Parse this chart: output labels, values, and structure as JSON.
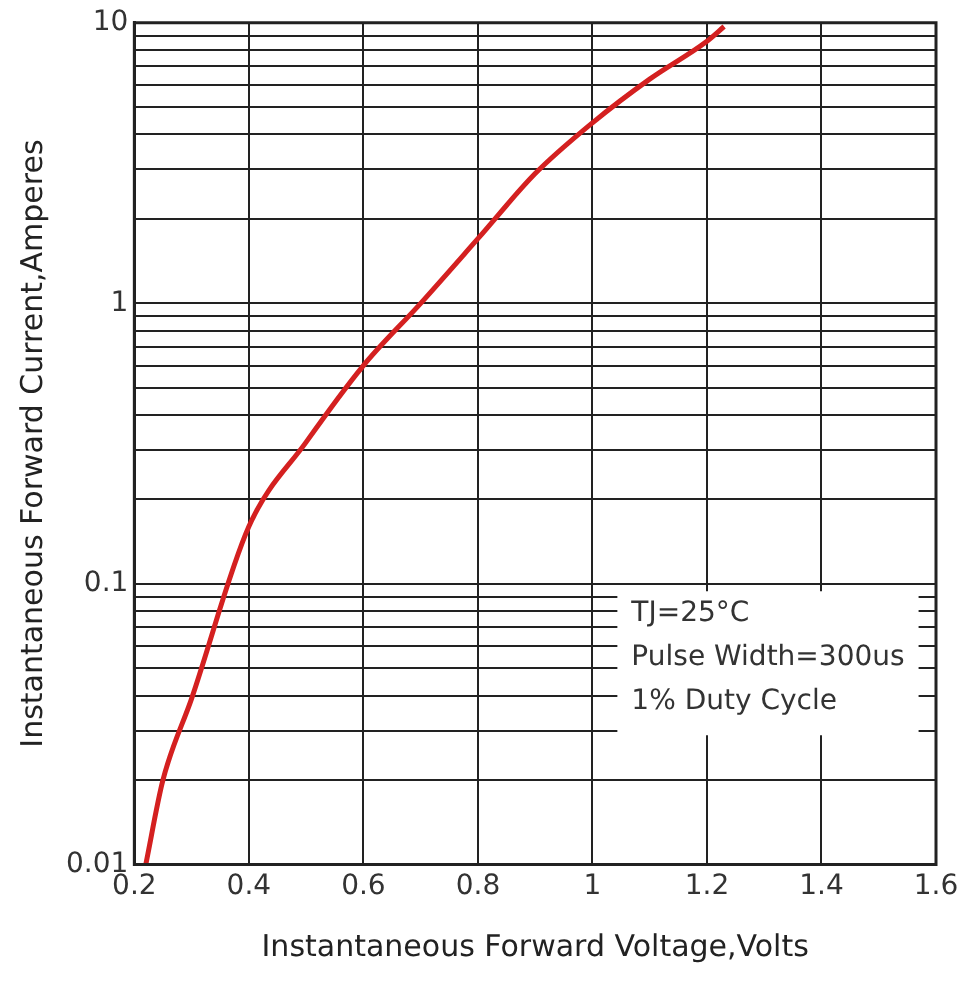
{
  "chart_data": {
    "type": "line",
    "xlabel": "Instantaneous Forward Voltage,Volts",
    "ylabel": "Instantaneous Forward Current,Amperes",
    "series": [
      {
        "color": "#d42020",
        "x": [
          0.22,
          0.25,
          0.3,
          0.4,
          0.5,
          0.6,
          0.7,
          0.8,
          0.9,
          1.0,
          1.1,
          1.2,
          1.23
        ],
        "values": [
          0.01,
          0.02,
          0.039,
          0.16,
          0.32,
          0.6,
          1.0,
          1.7,
          2.9,
          4.4,
          6.3,
          8.6,
          9.7
        ]
      }
    ],
    "xlim": [
      0.2,
      1.6
    ],
    "xticks": [
      0.2,
      0.4,
      0.6,
      0.8,
      1.0,
      1.2,
      1.4,
      1.6
    ],
    "ylim": [
      0.01,
      10
    ],
    "log": "y",
    "yticks": [
      0.01,
      {
        "value": 0.02,
        "label": null
      },
      {
        "value": 0.03,
        "label": null
      },
      {
        "value": 0.04,
        "label": null
      },
      {
        "value": 0.05,
        "label": null
      },
      {
        "value": 0.06,
        "label": null
      },
      {
        "value": 0.07,
        "label": null
      },
      {
        "value": 0.08,
        "label": null
      },
      {
        "value": 0.09,
        "label": null
      },
      0.1,
      {
        "value": 0.2,
        "label": null
      },
      {
        "value": 0.3,
        "label": null
      },
      {
        "value": 0.4,
        "label": null
      },
      {
        "value": 0.5,
        "label": null
      },
      {
        "value": 0.6,
        "label": null
      },
      {
        "value": 0.7,
        "label": null
      },
      {
        "value": 0.8,
        "label": null
      },
      {
        "value": 0.9,
        "label": null
      },
      1,
      {
        "value": 2,
        "label": null
      },
      {
        "value": 3,
        "label": null
      },
      {
        "value": 4,
        "label": null
      },
      {
        "value": 5,
        "label": null
      },
      {
        "value": 6,
        "label": null
      },
      {
        "value": 7,
        "label": null
      },
      {
        "value": 8,
        "label": null
      },
      {
        "value": 9,
        "label": null
      },
      10
    ],
    "grid": true,
    "marker": "none",
    "line_style": "solid",
    "annotations": [
      "TJ=25°C",
      "Pulse Width=300us",
      "1% Duty Cycle"
    ]
  }
}
